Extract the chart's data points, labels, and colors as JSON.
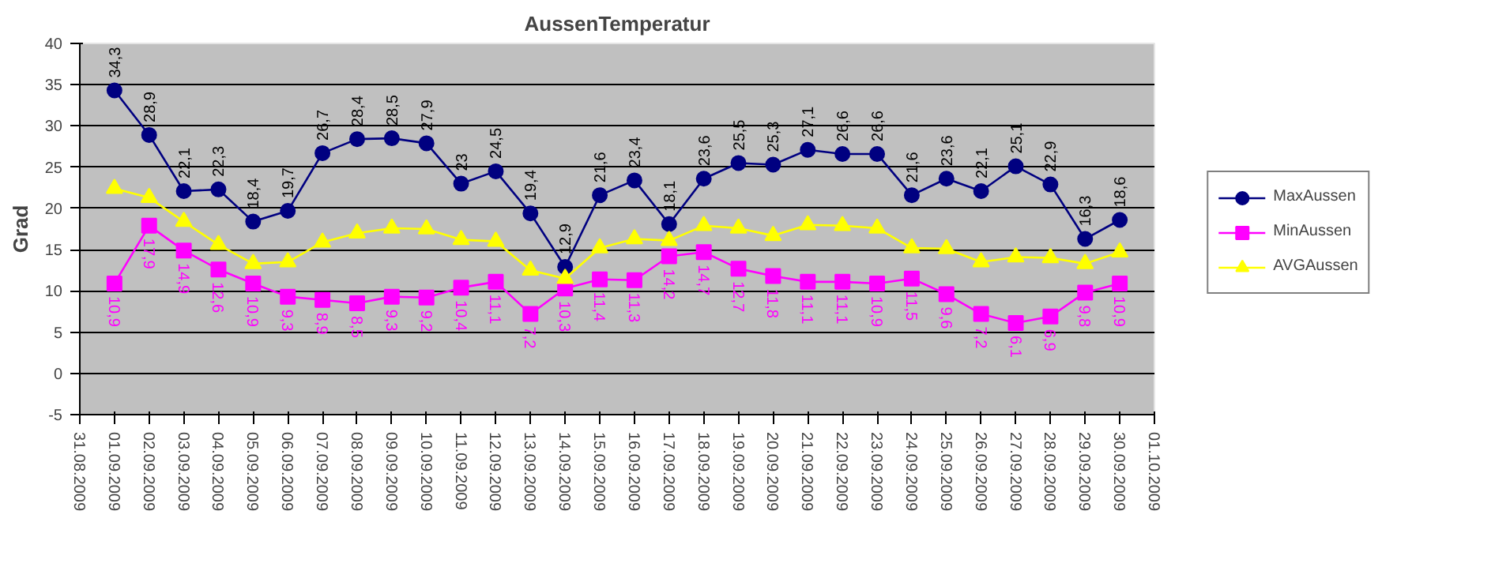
{
  "chart_data": {
    "type": "line",
    "title": "AussenTemperatur",
    "ylabel": "Grad",
    "x": [
      "2009-09-01",
      "2009-09-02",
      "2009-09-03",
      "2009-09-04",
      "2009-09-05",
      "2009-09-06",
      "2009-09-07",
      "2009-09-08",
      "2009-09-09",
      "2009-09-10",
      "2009-09-11",
      "2009-09-12",
      "2009-09-13",
      "2009-09-14",
      "2009-09-15",
      "2009-09-16",
      "2009-09-17",
      "2009-09-18",
      "2009-09-19",
      "2009-09-20",
      "2009-09-21",
      "2009-09-22",
      "2009-09-23",
      "2009-09-24",
      "2009-09-25",
      "2009-09-26",
      "2009-09-27",
      "2009-09-28",
      "2009-09-29",
      "2009-09-30"
    ],
    "xlim": [
      "2009-08-31",
      "2009-10-01"
    ],
    "xticks": [
      {
        "value": "2009-08-31",
        "label": "31.08.2009"
      },
      {
        "value": "2009-09-01",
        "label": "01.09.2009"
      },
      {
        "value": "2009-09-02",
        "label": "02.09.2009"
      },
      {
        "value": "2009-09-03",
        "label": "03.09.2009"
      },
      {
        "value": "2009-09-04",
        "label": "04.09.2009"
      },
      {
        "value": "2009-09-05",
        "label": "05.09.2009"
      },
      {
        "value": "2009-09-06",
        "label": "06.09.2009"
      },
      {
        "value": "2009-09-07",
        "label": "07.09.2009"
      },
      {
        "value": "2009-09-08",
        "label": "08.09.2009"
      },
      {
        "value": "2009-09-09",
        "label": "09.09.2009"
      },
      {
        "value": "2009-09-10",
        "label": "10.09.2009"
      },
      {
        "value": "2009-09-11",
        "label": "11.09.2009"
      },
      {
        "value": "2009-09-12",
        "label": "12.09.2009"
      },
      {
        "value": "2009-09-13",
        "label": "13.09.2009"
      },
      {
        "value": "2009-09-14",
        "label": "14.09.2009"
      },
      {
        "value": "2009-09-15",
        "label": "15.09.2009"
      },
      {
        "value": "2009-09-16",
        "label": "16.09.2009"
      },
      {
        "value": "2009-09-17",
        "label": "17.09.2009"
      },
      {
        "value": "2009-09-18",
        "label": "18.09.2009"
      },
      {
        "value": "2009-09-19",
        "label": "19.09.2009"
      },
      {
        "value": "2009-09-20",
        "label": "20.09.2009"
      },
      {
        "value": "2009-09-21",
        "label": "21.09.2009"
      },
      {
        "value": "2009-09-22",
        "label": "22.09.2009"
      },
      {
        "value": "2009-09-23",
        "label": "23.09.2009"
      },
      {
        "value": "2009-09-24",
        "label": "24.09.2009"
      },
      {
        "value": "2009-09-25",
        "label": "25.09.2009"
      },
      {
        "value": "2009-09-26",
        "label": "26.09.2009"
      },
      {
        "value": "2009-09-27",
        "label": "27.09.2009"
      },
      {
        "value": "2009-09-28",
        "label": "28.09.2009"
      },
      {
        "value": "2009-09-29",
        "label": "29.09.2009"
      },
      {
        "value": "2009-09-30",
        "label": "30.09.2009"
      },
      {
        "value": "2009-10-01",
        "label": "01.10.2009"
      }
    ],
    "ylim": [
      -5,
      40
    ],
    "yticks": [
      -5,
      0,
      5,
      10,
      15,
      20,
      25,
      30,
      35,
      40
    ],
    "grid": "y",
    "legend": "right",
    "line_style": "solid",
    "series": [
      {
        "name": "MaxAussen",
        "color": "#000080",
        "marker": "circle",
        "values": [
          34.3,
          28.9,
          22.1,
          22.3,
          18.4,
          19.7,
          26.7,
          28.4,
          28.5,
          27.9,
          23,
          24.5,
          19.4,
          12.9,
          21.6,
          23.4,
          18.1,
          23.6,
          25.5,
          25.3,
          27.1,
          26.6,
          26.6,
          21.6,
          23.6,
          22.1,
          25.1,
          22.9,
          16.3,
          18.6
        ],
        "value_labels": [
          "34,3",
          "28,9",
          "22,1",
          "22,3",
          "18,4",
          "19,7",
          "26,7",
          "28,4",
          "28,5",
          "27,9",
          "23",
          "24,5",
          "19,4",
          "12,9",
          "21,6",
          "23,4",
          "18,1",
          "23,6",
          "25,5",
          "25,3",
          "27,1",
          "26,6",
          "26,6",
          "21,6",
          "23,6",
          "22,1",
          "25,1",
          "22,9",
          "16,3",
          "18,6"
        ]
      },
      {
        "name": "MinAussen",
        "color": "#ff00ff",
        "marker": "square",
        "values": [
          10.9,
          17.9,
          14.9,
          12.6,
          10.9,
          9.3,
          8.9,
          8.5,
          9.3,
          9.2,
          10.4,
          11.1,
          7.2,
          10.3,
          11.4,
          11.3,
          14.2,
          14.7,
          12.7,
          11.8,
          11.1,
          11.1,
          10.9,
          11.5,
          9.6,
          7.2,
          6.1,
          6.9,
          9.8,
          10.9
        ],
        "value_labels": [
          "10,9",
          "17,9",
          "14,9",
          "12,6",
          "10,9",
          "9,3",
          "8,9",
          "8,5",
          "9,3",
          "9,2",
          "10,4",
          "11,1",
          "7,2",
          "10,3",
          "11,4",
          "11,3",
          "14,2",
          "14,7",
          "12,7",
          "11,8",
          "11,1",
          "11,1",
          "10,9",
          "11,5",
          "9,6",
          "7,2",
          "6,1",
          "6,9",
          "9,8",
          "10,9"
        ]
      },
      {
        "name": "AVGAussen",
        "color": "#ffff00",
        "marker": "triangle",
        "values": [
          22.4,
          21.3,
          18.4,
          15.6,
          13.3,
          13.5,
          15.9,
          17.0,
          17.6,
          17.5,
          16.2,
          16.0,
          12.5,
          11.5,
          15.2,
          16.3,
          16.1,
          17.9,
          17.6,
          16.7,
          18.0,
          17.9,
          17.6,
          15.2,
          15.1,
          13.5,
          14.1,
          14.0,
          13.3,
          14.7
        ]
      }
    ]
  }
}
